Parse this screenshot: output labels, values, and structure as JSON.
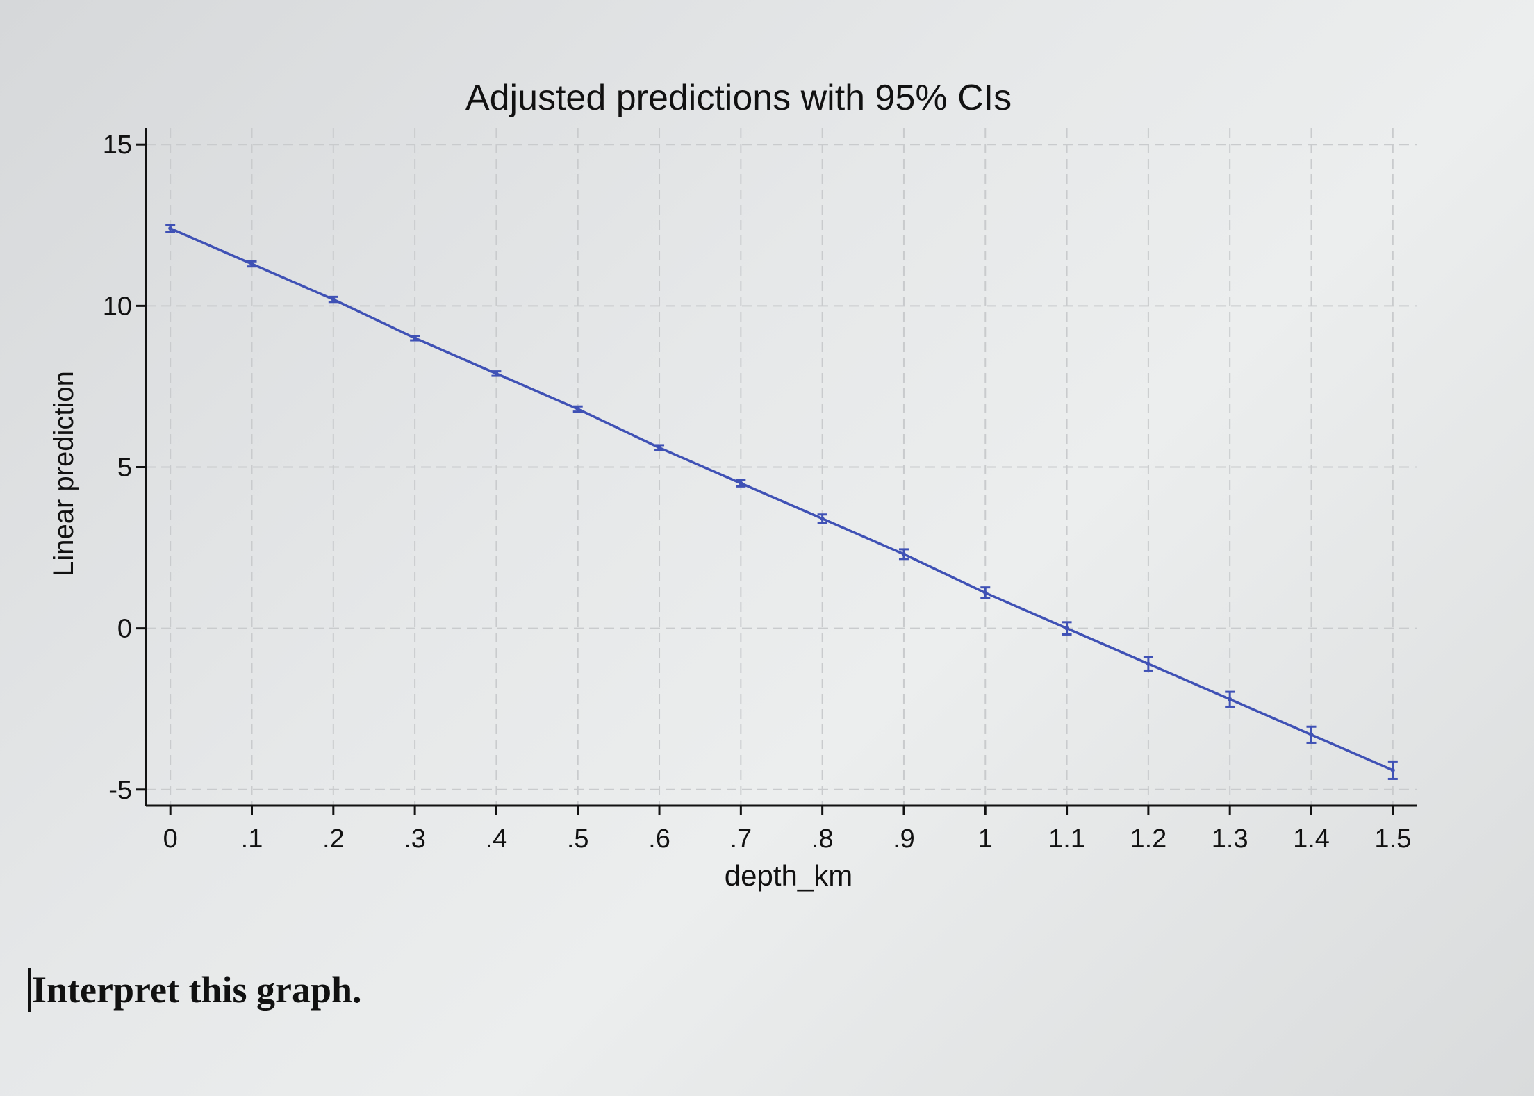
{
  "chart_data": {
    "type": "line",
    "title": "Adjusted predictions with 95% CIs",
    "xlabel": "depth_km",
    "ylabel": "Linear prediction",
    "xlim": [
      -0.03,
      1.53
    ],
    "ylim": [
      -5.5,
      15.5
    ],
    "x_ticks": [
      0,
      0.1,
      0.2,
      0.3,
      0.4,
      0.5,
      0.6,
      0.7,
      0.8,
      0.9,
      1,
      1.1,
      1.2,
      1.3,
      1.4,
      1.5
    ],
    "x_tick_labels": [
      "0",
      ".1",
      ".2",
      ".3",
      ".4",
      ".5",
      ".6",
      ".7",
      ".8",
      ".9",
      "1",
      "1.1",
      "1.2",
      "1.3",
      "1.4",
      "1.5"
    ],
    "y_ticks": [
      -5,
      0,
      5,
      10,
      15
    ],
    "y_tick_labels": [
      "-5",
      "0",
      "5",
      "10",
      "15"
    ],
    "grid": true,
    "series": [
      {
        "x": [
          0,
          0.1,
          0.2,
          0.3,
          0.4,
          0.5,
          0.6,
          0.7,
          0.8,
          0.9,
          1,
          1.1,
          1.2,
          1.3,
          1.4,
          1.5
        ],
        "y": [
          12.4,
          11.3,
          10.2,
          9.0,
          7.9,
          6.8,
          5.6,
          4.5,
          3.4,
          2.3,
          1.1,
          0.0,
          -1.1,
          -2.2,
          -3.3,
          -4.4
        ],
        "ci_low": [
          12.3,
          11.22,
          10.12,
          8.93,
          7.83,
          6.72,
          5.52,
          4.4,
          3.27,
          2.15,
          0.93,
          -0.19,
          -1.31,
          -2.43,
          -3.55,
          -4.67
        ],
        "ci_high": [
          12.5,
          11.38,
          10.28,
          9.07,
          7.97,
          6.88,
          5.68,
          4.6,
          3.53,
          2.45,
          1.27,
          0.19,
          -0.89,
          -1.97,
          -3.05,
          -4.13
        ],
        "color": "#3f51b5"
      }
    ]
  },
  "question_text": "Interpret this graph."
}
